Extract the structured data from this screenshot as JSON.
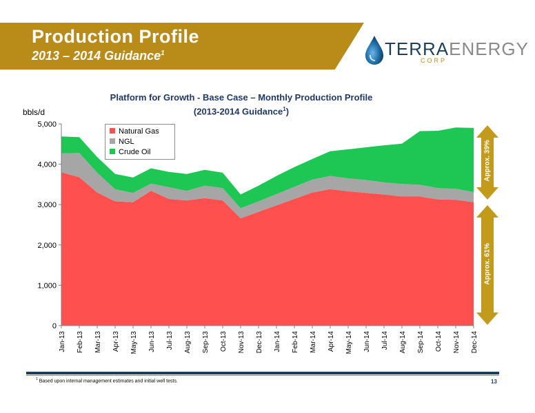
{
  "header": {
    "title": "Production Profile",
    "subtitle": "2013 – 2014 Guidance",
    "subtitle_sup": "1"
  },
  "logo": {
    "terra": "TERRA",
    "energy": "ENERGY",
    "corp": "CORP"
  },
  "colors": {
    "banner": "#b98c19",
    "natural_gas": "#ff5050",
    "ngl": "#a6a6a6",
    "crude_oil": "#1ec653",
    "arrow": "#c39b1c",
    "navy": "#1b3f5e"
  },
  "annotations": {
    "upper": "Approx. 39%",
    "lower": "Approx. 61%"
  },
  "footer": {
    "footnote_sup": "1",
    "footnote": "Based upon internal management estimates and initial well tests.",
    "page": "13"
  },
  "chart_data": {
    "type": "area",
    "stacked": true,
    "title_line1": "Platform for Growth - Base Case – Monthly Production Profile",
    "title_line2": "(2013-2014 Guidance",
    "title_sup": "1",
    "title_close": ")",
    "ylabel": "bbls/d",
    "xlabel": "",
    "ylim": [
      0,
      5000
    ],
    "yticks": [
      "0",
      "1,000",
      "2,000",
      "3,000",
      "4,000",
      "5,000"
    ],
    "categories": [
      "Jan-13",
      "Feb-13",
      "Mar-13",
      "Apr-13",
      "May-13",
      "Jun-13",
      "Jul-13",
      "Aug-13",
      "Sep-13",
      "Oct-13",
      "Nov-13",
      "Dec-13",
      "Jan-14",
      "Feb-14",
      "Mar-14",
      "Apr-14",
      "May-14",
      "Jun-14",
      "Jul-14",
      "Aug-14",
      "Sep-14",
      "Oct-14",
      "Nov-14",
      "Dec-14"
    ],
    "series": [
      {
        "name": "Natural Gas",
        "values": [
          3800,
          3680,
          3300,
          3080,
          3060,
          3340,
          3140,
          3100,
          3160,
          3100,
          2660,
          2820,
          2980,
          3140,
          3300,
          3380,
          3330,
          3290,
          3250,
          3200,
          3200,
          3130,
          3120,
          3060
        ]
      },
      {
        "name": "NGL",
        "values": [
          470,
          600,
          490,
          300,
          230,
          180,
          290,
          240,
          310,
          310,
          250,
          260,
          280,
          300,
          320,
          330,
          320,
          320,
          300,
          310,
          290,
          280,
          270,
          250
        ]
      },
      {
        "name": "Crude Oil",
        "values": [
          420,
          390,
          390,
          380,
          380,
          380,
          380,
          420,
          390,
          380,
          340,
          390,
          450,
          490,
          510,
          610,
          720,
          810,
          920,
          1000,
          1330,
          1420,
          1520,
          1590
        ]
      }
    ],
    "grid": false,
    "legend_position": "top-left"
  }
}
